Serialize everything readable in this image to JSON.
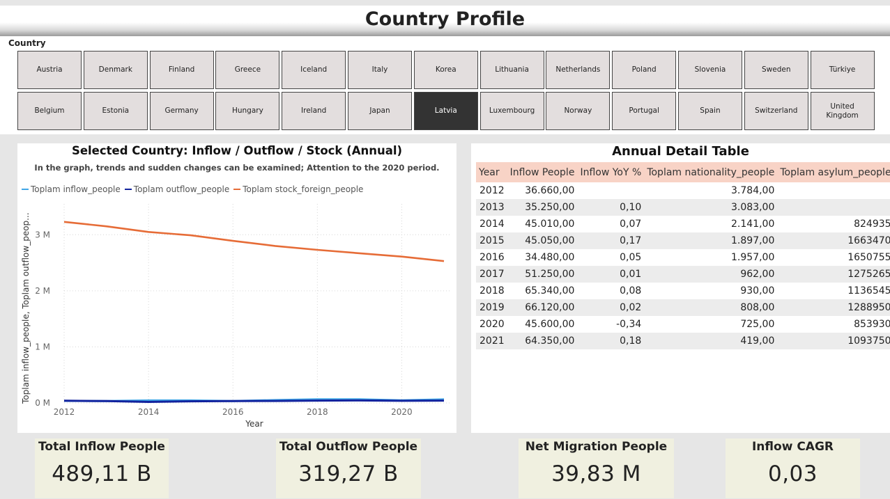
{
  "header": {
    "title": "Country Profile"
  },
  "slicer": {
    "label": "Country",
    "selected": "Latvia",
    "countries": [
      "Austria",
      "Denmark",
      "Finland",
      "Greece",
      "Iceland",
      "Italy",
      "Korea",
      "Lithuania",
      "Netherlands",
      "Poland",
      "Slovenia",
      "Sweden",
      "Türkiye",
      "Belgium",
      "Estonia",
      "Germany",
      "Hungary",
      "Ireland",
      "Japan",
      "Latvia",
      "Luxembourg",
      "Norway",
      "Portugal",
      "Spain",
      "Switzerland",
      "United Kingdom"
    ]
  },
  "line_chart": {
    "title": "Selected Country: Inflow / Outflow / Stock (Annual)",
    "subtitle": "In the graph, trends and sudden changes can be examined; Attention to the 2020 period.",
    "ylabel": "Toplam inflow_people, Toplam outflow_peop...",
    "xlabel": "Year"
  },
  "chart_data": {
    "type": "line",
    "x": [
      2012,
      2013,
      2014,
      2015,
      2016,
      2017,
      2018,
      2019,
      2020,
      2021
    ],
    "x_ticks": [
      2012,
      2014,
      2016,
      2018,
      2020
    ],
    "y_ticks": [
      {
        "value": 0,
        "label": "0 M"
      },
      {
        "value": 1000000,
        "label": "1 M"
      },
      {
        "value": 2000000,
        "label": "2 M"
      },
      {
        "value": 3000000,
        "label": "3 M"
      }
    ],
    "ylim": [
      0,
      3500000
    ],
    "grid": true,
    "legend_position": "top-left",
    "series": [
      {
        "name": "Toplam inflow_people",
        "color": "#41a6e6",
        "values": [
          36660,
          35250,
          45010,
          45050,
          34480,
          51250,
          65340,
          66120,
          45600,
          64350
        ]
      },
      {
        "name": "Toplam outflow_people",
        "color": "#12239e",
        "values": [
          40000,
          33000,
          18000,
          30000,
          33000,
          36000,
          42000,
          45000,
          38000,
          42000
        ]
      },
      {
        "name": "Toplam stock_foreign_people",
        "color": "#e66c37",
        "values": [
          3230000,
          3150000,
          3050000,
          2990000,
          2890000,
          2800000,
          2730000,
          2670000,
          2610000,
          2530000
        ]
      }
    ]
  },
  "detail_table": {
    "title": "Annual Detail Table",
    "columns": [
      "Year",
      "Inflow People",
      "Inflow YoY %",
      "Toplam nationality_people",
      "Toplam asylum_people"
    ],
    "rows": [
      [
        "2012",
        "36.660,00",
        "",
        "3.784,00",
        ""
      ],
      [
        "2013",
        "35.250,00",
        "0,10",
        "3.083,00",
        ""
      ],
      [
        "2014",
        "45.010,00",
        "0,07",
        "2.141,00",
        "824935"
      ],
      [
        "2015",
        "45.050,00",
        "0,17",
        "1.897,00",
        "1663470"
      ],
      [
        "2016",
        "34.480,00",
        "0,05",
        "1.957,00",
        "1650755"
      ],
      [
        "2017",
        "51.250,00",
        "0,01",
        "962,00",
        "1275265"
      ],
      [
        "2018",
        "65.340,00",
        "0,08",
        "930,00",
        "1136545"
      ],
      [
        "2019",
        "66.120,00",
        "0,02",
        "808,00",
        "1288950"
      ],
      [
        "2020",
        "45.600,00",
        "-0,34",
        "725,00",
        "853930"
      ],
      [
        "2021",
        "64.350,00",
        "0,18",
        "419,00",
        "1093750"
      ]
    ]
  },
  "kpis": {
    "total_inflow": {
      "label": "Total Inflow People",
      "value": "489,11 B"
    },
    "total_outflow": {
      "label": "Total Outflow People",
      "value": "319,27 B"
    },
    "net_migration": {
      "label": "Net Migration People",
      "value": "39,83 M"
    },
    "inflow_cagr": {
      "label": "Inflow CAGR",
      "value": "0,03"
    }
  }
}
